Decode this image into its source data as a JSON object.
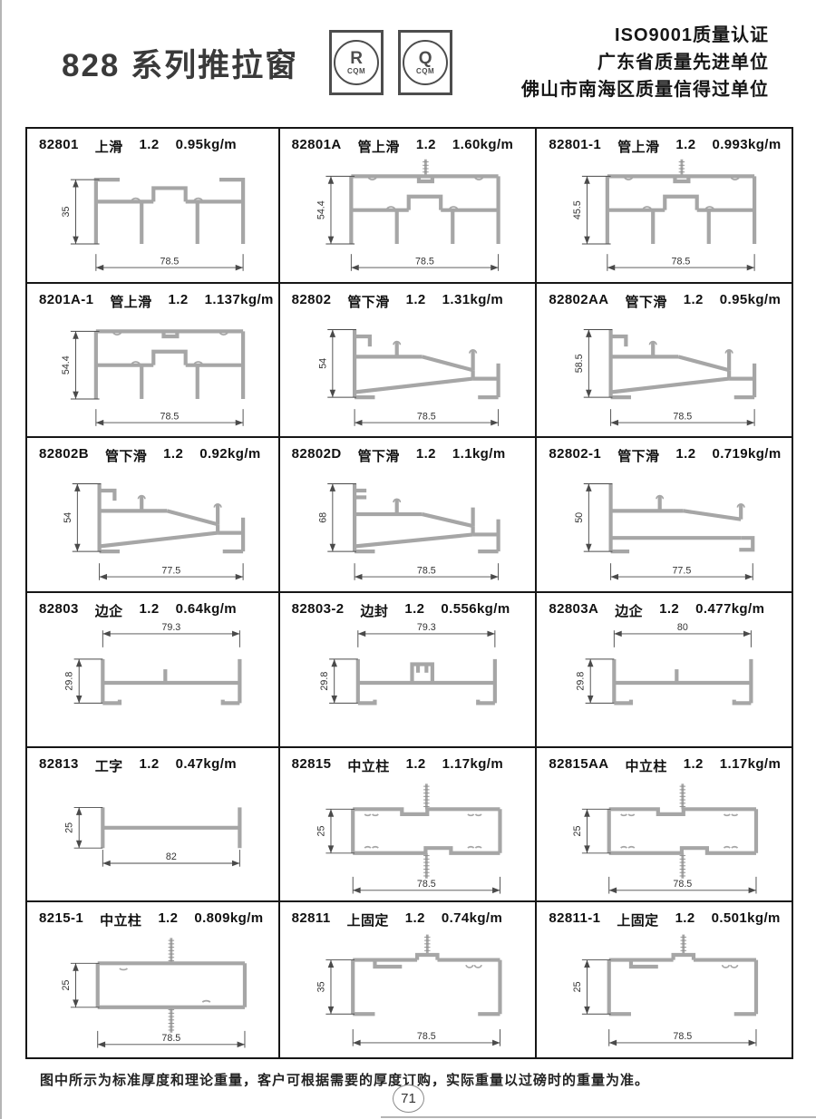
{
  "header": {
    "title": "828 系列推拉窗",
    "badges": [
      {
        "letter": "R",
        "sub": "CQM"
      },
      {
        "letter": "Q",
        "sub": "CQM"
      }
    ],
    "certifications": [
      "ISO9001质量认证",
      "广东省质量先进单位",
      "佛山市南海区质量信得过单位"
    ]
  },
  "cells": [
    {
      "code": "82801",
      "name": "上滑",
      "thickness": "1.2",
      "weight": "0.95kg/m",
      "dim_v": "35",
      "dim_h": "78.5",
      "shape": "top-slide"
    },
    {
      "code": "82801A",
      "name": "管上滑",
      "thickness": "1.2",
      "weight": "1.60kg/m",
      "dim_v": "54.4",
      "dim_h": "78.5",
      "shape": "tube-top-slide-screw"
    },
    {
      "code": "82801-1",
      "name": "管上滑",
      "thickness": "1.2",
      "weight": "0.993kg/m",
      "dim_v": "45.5",
      "dim_h": "78.5",
      "shape": "tube-top-slide-screw"
    },
    {
      "code": "8201A-1",
      "name": "管上滑",
      "thickness": "1.2",
      "weight": "1.137kg/m",
      "dim_v": "54.4",
      "dim_h": "78.5",
      "shape": "tube-top-slide"
    },
    {
      "code": "82802",
      "name": "管下滑",
      "thickness": "1.2",
      "weight": "1.31kg/m",
      "dim_v": "54",
      "dim_h": "78.5",
      "shape": "bottom-slide"
    },
    {
      "code": "82802AA",
      "name": "管下滑",
      "thickness": "1.2",
      "weight": "0.95kg/m",
      "dim_v": "58.5",
      "dim_h": "78.5",
      "shape": "bottom-slide"
    },
    {
      "code": "82802B",
      "name": "管下滑",
      "thickness": "1.2",
      "weight": "0.92kg/m",
      "dim_v": "54",
      "dim_h": "77.5",
      "shape": "bottom-slide"
    },
    {
      "code": "82802D",
      "name": "管下滑",
      "thickness": "1.2",
      "weight": "1.1kg/m",
      "dim_v": "68",
      "dim_h": "78.5",
      "shape": "bottom-slide-d"
    },
    {
      "code": "82802-1",
      "name": "管下滑",
      "thickness": "1.2",
      "weight": "0.719kg/m",
      "dim_v": "50",
      "dim_h": "77.5",
      "shape": "bottom-slide-1"
    },
    {
      "code": "82803",
      "name": "边企",
      "thickness": "1.2",
      "weight": "0.64kg/m",
      "dim_v": "29.8",
      "dim_h": "79.3",
      "shape": "edge-h"
    },
    {
      "code": "82803-2",
      "name": "边封",
      "thickness": "1.2",
      "weight": "0.556kg/m",
      "dim_v": "29.8",
      "dim_h": "79.3",
      "shape": "edge-h-clip"
    },
    {
      "code": "82803A",
      "name": "边企",
      "thickness": "1.2",
      "weight": "0.477kg/m",
      "dim_v": "29.8",
      "dim_h": "80",
      "shape": "edge-h"
    },
    {
      "code": "82813",
      "name": "工字",
      "thickness": "1.2",
      "weight": "0.47kg/m",
      "dim_v": "25",
      "dim_h": "82",
      "shape": "i-beam"
    },
    {
      "code": "82815",
      "name": "中立柱",
      "thickness": "1.2",
      "weight": "1.17kg/m",
      "dim_v": "25",
      "dim_h": "78.5",
      "shape": "mullion"
    },
    {
      "code": "82815AA",
      "name": "中立柱",
      "thickness": "1.2",
      "weight": "1.17kg/m",
      "dim_v": "25",
      "dim_h": "78.5",
      "shape": "mullion"
    },
    {
      "code": "8215-1",
      "name": "中立柱",
      "thickness": "1.2",
      "weight": "0.809kg/m",
      "dim_v": "25",
      "dim_h": "78.5",
      "shape": "mullion-plain"
    },
    {
      "code": "82811",
      "name": "上固定",
      "thickness": "1.2",
      "weight": "0.74kg/m",
      "dim_v": "35",
      "dim_h": "78.5",
      "shape": "top-fixed"
    },
    {
      "code": "82811-1",
      "name": "上固定",
      "thickness": "1.2",
      "weight": "0.501kg/m",
      "dim_v": "25",
      "dim_h": "78.5",
      "shape": "top-fixed"
    }
  ],
  "footer": {
    "note": "图中所示为标准厚度和理论重量，客户可根据需要的厚度订购，实际重量以过磅时的重量为准。",
    "page_number": "71"
  },
  "colors": {
    "grid_border": "#161616",
    "profile_stroke": "#a6a6a6",
    "dimension": "#4a4a4a"
  }
}
